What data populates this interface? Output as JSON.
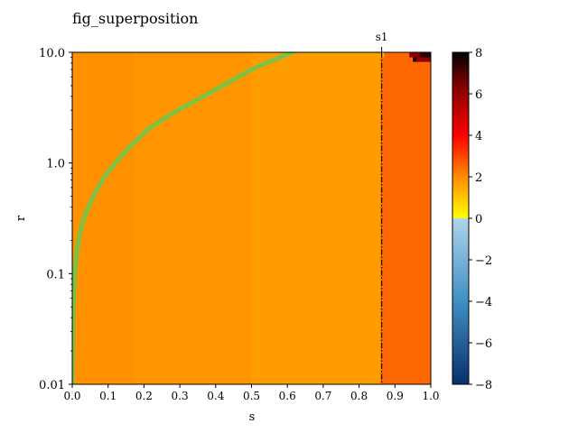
{
  "chart_data": {
    "type": "heatmap",
    "title": "fig_superposition",
    "xlabel": "s",
    "ylabel": "r",
    "xlim": [
      0,
      1
    ],
    "ylim": [
      0.01,
      10.0
    ],
    "yscale": "log",
    "x_tick_labels": [
      "0.0",
      "0.1",
      "0.2",
      "0.3",
      "0.4",
      "0.5",
      "0.6",
      "0.7",
      "0.8",
      "0.9",
      "1.0"
    ],
    "y_tick_labels": [
      "0.01",
      "0.1",
      "1.0",
      "10.0"
    ],
    "annotation": {
      "label": "s1",
      "x": 0.863,
      "style": "dash-dot vertical line"
    },
    "curve": {
      "color": "#7dc242",
      "x": [
        0.0,
        0.001,
        0.002,
        0.004,
        0.007,
        0.012,
        0.02,
        0.03,
        0.045,
        0.065,
        0.09,
        0.12,
        0.16,
        0.21,
        0.27,
        0.34,
        0.42,
        0.5,
        0.56,
        0.615
      ],
      "y": [
        0.01,
        0.02,
        0.035,
        0.06,
        0.1,
        0.15,
        0.22,
        0.3,
        0.4,
        0.55,
        0.75,
        1.0,
        1.4,
        2.0,
        2.7,
        3.6,
        5.0,
        7.0,
        8.5,
        10.0
      ]
    },
    "regions": [
      {
        "x_range": [
          0.0,
          0.17
        ],
        "value": 2.55,
        "color": "#ff9000"
      },
      {
        "x_range": [
          0.17,
          0.5
        ],
        "value": 2.45,
        "color": "#ff9500"
      },
      {
        "x_range": [
          0.5,
          0.86
        ],
        "value": 2.35,
        "color": "#ff9c00"
      },
      {
        "x_range": [
          0.86,
          1.0
        ],
        "value": 3.4,
        "color": "#ff6800"
      }
    ],
    "corner_cells": [
      {
        "x_range": [
          0.95,
          1.0
        ],
        "y_range": [
          8.2,
          10.0
        ],
        "value": 7.6,
        "color": "#2a0000"
      },
      {
        "x_range": [
          0.96,
          1.0
        ],
        "y_range": [
          8.2,
          9.0
        ],
        "value": 6.2,
        "color": "#8f0000"
      },
      {
        "x_range": [
          0.94,
          0.97
        ],
        "y_range": [
          9.0,
          10.0
        ],
        "value": 6.2,
        "color": "#8f0000"
      },
      {
        "x_range": [
          0.86,
          0.87
        ],
        "y_range": [
          9.0,
          10.0
        ],
        "value": 2.1,
        "color": "#ffb600"
      }
    ],
    "colorbar": {
      "range": [
        -8,
        8
      ],
      "tick_labels": [
        "8",
        "6",
        "4",
        "2",
        "0",
        "−2",
        "−4",
        "−6",
        "−8"
      ],
      "stops": [
        {
          "value": 8,
          "color": "#000000"
        },
        {
          "value": 6.5,
          "color": "#7a0000"
        },
        {
          "value": 4,
          "color": "#ff0000"
        },
        {
          "value": 2,
          "color": "#ff8c00"
        },
        {
          "value": 0.02,
          "color": "#ffff00"
        },
        {
          "value": 0,
          "color": "#b0d4ea"
        },
        {
          "value": -4,
          "color": "#3f8fc5"
        },
        {
          "value": -8,
          "color": "#08306b"
        }
      ]
    }
  }
}
